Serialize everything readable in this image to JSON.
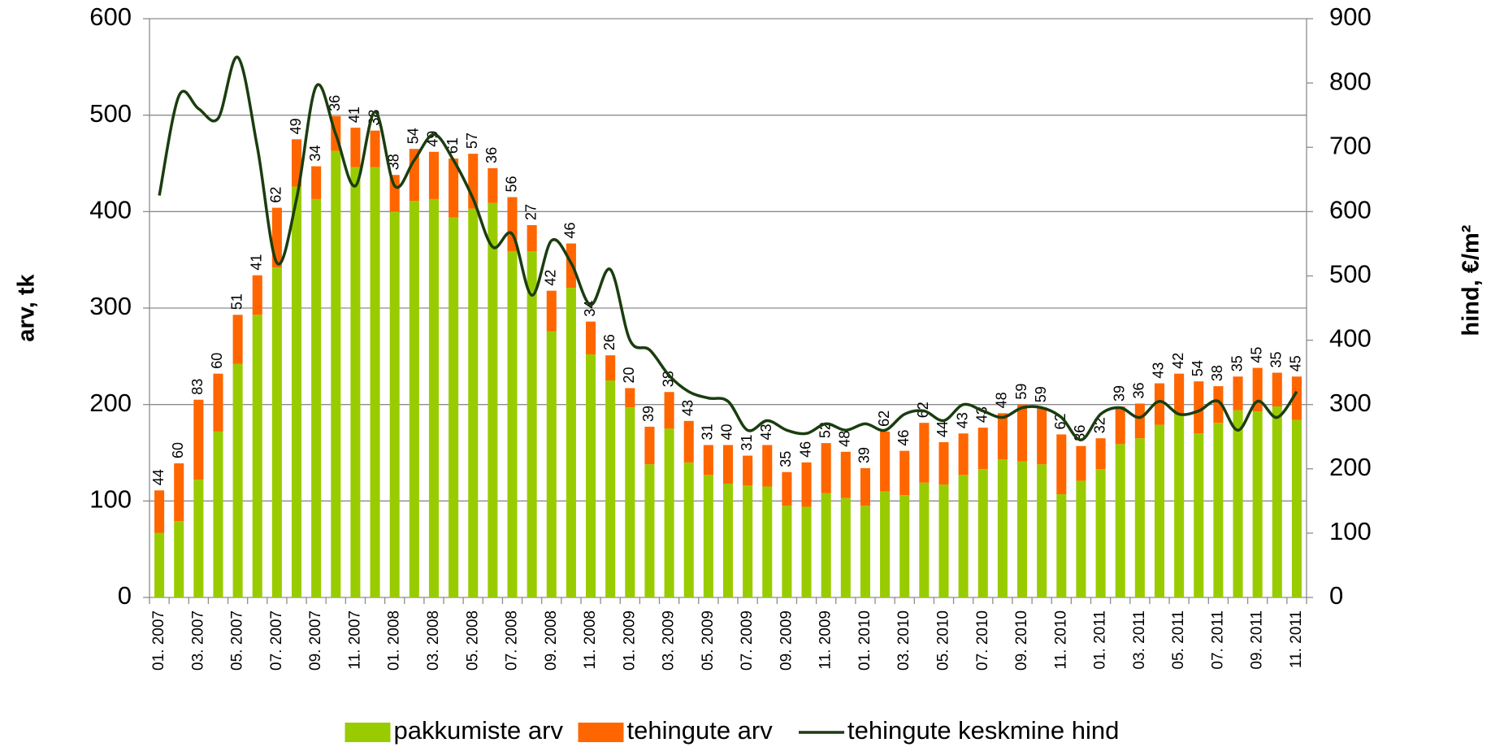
{
  "chart_data": {
    "type": "bar",
    "stacked": true,
    "categories": [
      "01. 2007",
      null,
      "03. 2007",
      null,
      "05. 2007",
      null,
      "07. 2007",
      null,
      "09. 2007",
      null,
      "11. 2007",
      null,
      "01. 2008",
      null,
      "03. 2008",
      null,
      "05. 2008",
      null,
      "07. 2008",
      null,
      "09. 2008",
      null,
      "11. 2008",
      null,
      "01. 2009",
      null,
      "03. 2009",
      null,
      "05. 2009",
      null,
      "07. 2009",
      null,
      "09. 2009",
      null,
      "11. 2009",
      null,
      "01. 2010",
      null,
      "03. 2010",
      null,
      "05. 2010",
      null,
      "07. 2010",
      null,
      "09. 2010",
      null,
      "11. 2010",
      null,
      "01. 2011",
      null,
      "03. 2011",
      null,
      "05. 2011",
      null,
      "07. 2011",
      null,
      "09. 2011",
      null,
      "11. 2011"
    ],
    "series": [
      {
        "name": "pakkumiste arv",
        "type": "bar",
        "color": "#99cc00",
        "axis": "y",
        "values": [
          67,
          79,
          122,
          172,
          242,
          293,
          342,
          426,
          413,
          463,
          446,
          446,
          400,
          411,
          413,
          394,
          403,
          409,
          359,
          359,
          276,
          321,
          252,
          225,
          197,
          138,
          175,
          140,
          127,
          118,
          116,
          115,
          95,
          94,
          108,
          103,
          95,
          110,
          106,
          119,
          117,
          127,
          133,
          143,
          141,
          138,
          107,
          121,
          133,
          159,
          165,
          179,
          190,
          170,
          181,
          194,
          193,
          198,
          184
        ]
      },
      {
        "name": "tehingute arv",
        "type": "bar",
        "color": "#ff6600",
        "axis": "y",
        "data_labels": true,
        "values": [
          44,
          60,
          83,
          60,
          51,
          41,
          62,
          49,
          34,
          36,
          41,
          38,
          38,
          54,
          49,
          61,
          57,
          36,
          56,
          27,
          42,
          46,
          34,
          26,
          20,
          39,
          38,
          43,
          31,
          40,
          31,
          43,
          35,
          46,
          52,
          48,
          39,
          62,
          46,
          62,
          44,
          43,
          43,
          48,
          59,
          59,
          62,
          36,
          32,
          39,
          36,
          43,
          42,
          54,
          38,
          35,
          45,
          35,
          45
        ]
      },
      {
        "name": "tehingute keskmine hind",
        "type": "line",
        "color": "#1a3d0f",
        "axis": "y2",
        "smooth": true,
        "values": [
          625,
          780,
          760,
          745,
          840,
          700,
          520,
          620,
          795,
          720,
          640,
          755,
          640,
          680,
          720,
          680,
          620,
          545,
          565,
          470,
          555,
          520,
          455,
          510,
          400,
          385,
          345,
          320,
          310,
          305,
          260,
          275,
          260,
          255,
          270,
          260,
          270,
          260,
          285,
          290,
          275,
          300,
          290,
          280,
          295,
          295,
          280,
          245,
          285,
          295,
          280,
          305,
          285,
          290,
          305,
          260,
          305,
          280,
          320
        ]
      }
    ],
    "ylabel": "arv, tk",
    "y2label": "hind, €/m²",
    "ylim": [
      0,
      600
    ],
    "yticks": [
      0,
      100,
      200,
      300,
      400,
      500,
      600
    ],
    "y2lim": [
      0,
      900
    ],
    "y2ticks": [
      0,
      100,
      200,
      300,
      400,
      500,
      600,
      700,
      800,
      900
    ],
    "grid": true,
    "legend": "bottom"
  }
}
